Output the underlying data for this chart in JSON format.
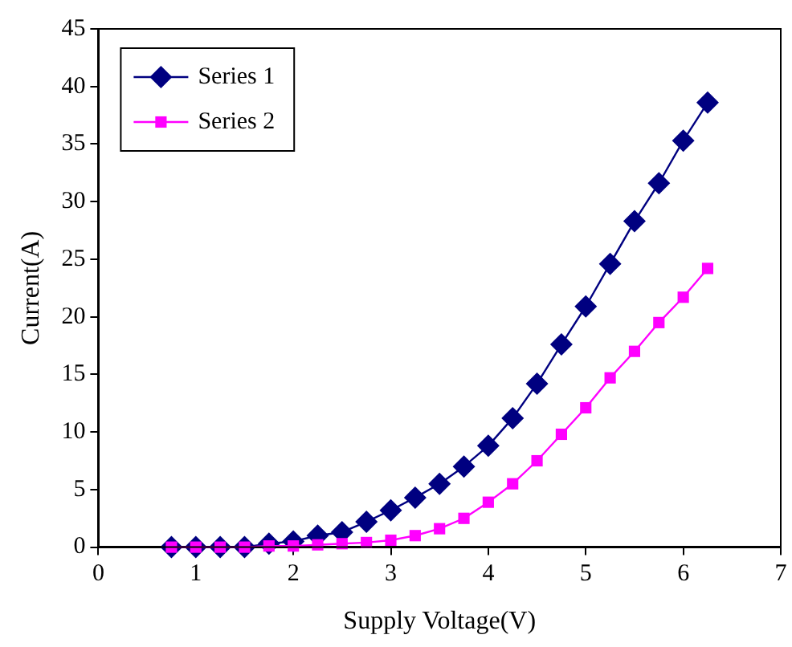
{
  "chart_data": {
    "type": "line",
    "xlabel": "Supply Voltage(V)",
    "ylabel": "Current(A)",
    "x": [
      0.75,
      1,
      1.25,
      1.5,
      1.75,
      2,
      2.25,
      2.5,
      2.75,
      3,
      3.25,
      3.5,
      3.75,
      4,
      4.25,
      4.5,
      4.75,
      5,
      5.25,
      5.5,
      5.75,
      6,
      6.25
    ],
    "series": [
      {
        "name": "Series 1",
        "color": "#000080",
        "marker": "diamond",
        "values": [
          0,
          0,
          0,
          0,
          0.3,
          0.5,
          1.0,
          1.3,
          2.2,
          3.2,
          4.3,
          5.5,
          7.0,
          8.8,
          11.2,
          14.2,
          17.6,
          20.9,
          24.6,
          28.3,
          31.6,
          35.3,
          38.6
        ]
      },
      {
        "name": "Series 2",
        "color": "#ff00ff",
        "marker": "square",
        "values": [
          0,
          0,
          0,
          0,
          0.1,
          0.1,
          0.2,
          0.3,
          0.4,
          0.6,
          1.0,
          1.6,
          2.5,
          3.9,
          5.5,
          7.5,
          9.8,
          12.1,
          14.7,
          17.0,
          19.5,
          21.7,
          24.2
        ]
      }
    ],
    "xlim": [
      0,
      7
    ],
    "xticks": [
      0,
      1,
      2,
      3,
      4,
      5,
      6,
      7
    ],
    "ylim": [
      0,
      45
    ],
    "yticks": [
      0,
      5,
      10,
      15,
      20,
      25,
      30,
      35,
      40,
      45
    ],
    "grid": false,
    "legend": "top left"
  }
}
